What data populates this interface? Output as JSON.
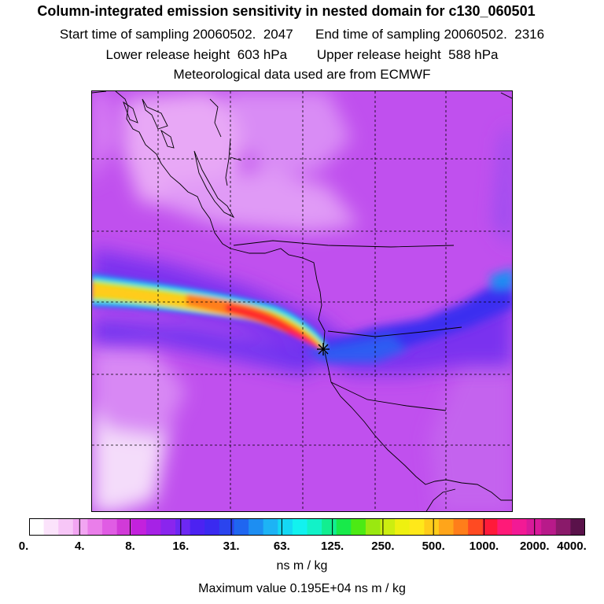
{
  "header": {
    "title": "Column-integrated emission sensitivity in nested domain for c130_060501",
    "start_label": "Start time of sampling 20060502.  2047",
    "end_label": "End time of sampling 20060502.  2316",
    "lower_label": "Lower release height  603 hPa",
    "upper_label": "Upper release height  588 hPa",
    "met_label": "Meteorological data used are from ECMWF"
  },
  "colorbar": {
    "tick_labels": [
      "0.",
      "4.",
      "8.",
      "16.",
      "31.",
      "63.",
      "125.",
      "250.",
      "500.",
      "1000.",
      "2000.",
      "4000."
    ],
    "colors": [
      "#ffffff",
      "#fbe3fb",
      "#f7c6f7",
      "#f2a5f2",
      "#ea7eea",
      "#e05ce4",
      "#d13ad8",
      "#c321dd",
      "#a622e6",
      "#8a25ee",
      "#6d28f3",
      "#4c22f2",
      "#3a2af0",
      "#2b44ee",
      "#1f66f0",
      "#1d8ef2",
      "#1db3f5",
      "#14d8f4",
      "#12f2ef",
      "#12f2c8",
      "#12ee90",
      "#18ea4a",
      "#4cea14",
      "#9ae810",
      "#ccee10",
      "#eef010",
      "#ffe81a",
      "#ffcc1a",
      "#ffa51a",
      "#ff7e1a",
      "#ff4a22",
      "#ff1a3a",
      "#ff1a78",
      "#f21a95",
      "#d81a9a",
      "#b81a8a",
      "#8a1a6a",
      "#5a124a"
    ],
    "units": "ns m / kg"
  },
  "footer": {
    "max_value": "Maximum value  0.195E+04 ns m / kg"
  },
  "map": {
    "background_color": "#c050ee",
    "release_marker": "star-marker"
  }
}
